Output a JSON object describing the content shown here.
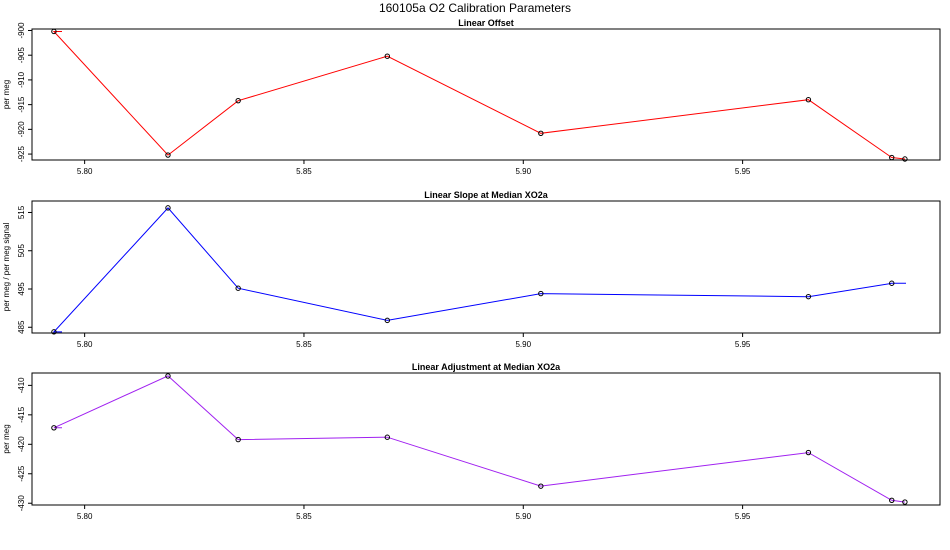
{
  "figure_title": "160105a   O2 Calibration Parameters",
  "chart_data": [
    {
      "type": "line",
      "title": "Linear Offset",
      "xlabel": "",
      "ylabel": "per meg",
      "color": "#ff0000",
      "xlim": [
        5.788,
        5.995
      ],
      "ylim": [
        -926.2,
        -899.7
      ],
      "x_ticks": [
        5.8,
        5.85,
        5.9,
        5.95
      ],
      "x_tick_labels": [
        "5.80",
        "5.85",
        "5.90",
        "5.95"
      ],
      "y_ticks": [
        -900,
        -905,
        -910,
        -915,
        -920,
        -925
      ],
      "y_tick_labels": [
        "-900",
        "-905",
        "-910",
        "-915",
        "-920",
        "-925"
      ],
      "lead_in": true,
      "lead_out": false,
      "x": [
        5.793,
        5.819,
        5.835,
        5.869,
        5.904,
        5.965,
        5.984,
        5.987
      ],
      "values": [
        -900.2,
        -925.2,
        -914.2,
        -905.2,
        -920.8,
        -914.0,
        -925.7,
        -926.0
      ]
    },
    {
      "type": "line",
      "title": "Linear Slope at Median XO2a",
      "xlabel": "",
      "ylabel": "per meg / per meg signal",
      "color": "#0000ff",
      "xlim": [
        5.788,
        5.995
      ],
      "ylim": [
        483.5,
        518
      ],
      "x_ticks": [
        5.8,
        5.85,
        5.9,
        5.95
      ],
      "x_tick_labels": [
        "5.80",
        "5.85",
        "5.90",
        "5.95"
      ],
      "y_ticks": [
        485,
        495,
        505,
        515
      ],
      "y_tick_labels": [
        "485",
        "495",
        "505",
        "515"
      ],
      "lead_in": true,
      "lead_out": true,
      "x": [
        5.793,
        5.819,
        5.835,
        5.869,
        5.904,
        5.965,
        5.984
      ],
      "values": [
        483.8,
        516.2,
        495.2,
        486.8,
        493.8,
        493.0,
        496.5
      ]
    },
    {
      "type": "line",
      "title": "Linear Adjustment at Median XO2a",
      "xlabel": "",
      "ylabel": "per meg",
      "color": "#a020f0",
      "xlim": [
        5.788,
        5.995
      ],
      "ylim": [
        -430.3,
        -407.9
      ],
      "x_ticks": [
        5.8,
        5.85,
        5.9,
        5.95
      ],
      "x_tick_labels": [
        "5.80",
        "5.85",
        "5.90",
        "5.95"
      ],
      "y_ticks": [
        -410,
        -415,
        -420,
        -425,
        -430
      ],
      "y_tick_labels": [
        "-410",
        "-415",
        "-420",
        "-425",
        "-430"
      ],
      "lead_in": true,
      "lead_out": false,
      "x": [
        5.793,
        5.819,
        5.835,
        5.869,
        5.904,
        5.965,
        5.984,
        5.987
      ],
      "values": [
        -417.2,
        -408.4,
        -419.2,
        -418.8,
        -427.1,
        -421.4,
        -429.5,
        -429.8
      ]
    }
  ]
}
